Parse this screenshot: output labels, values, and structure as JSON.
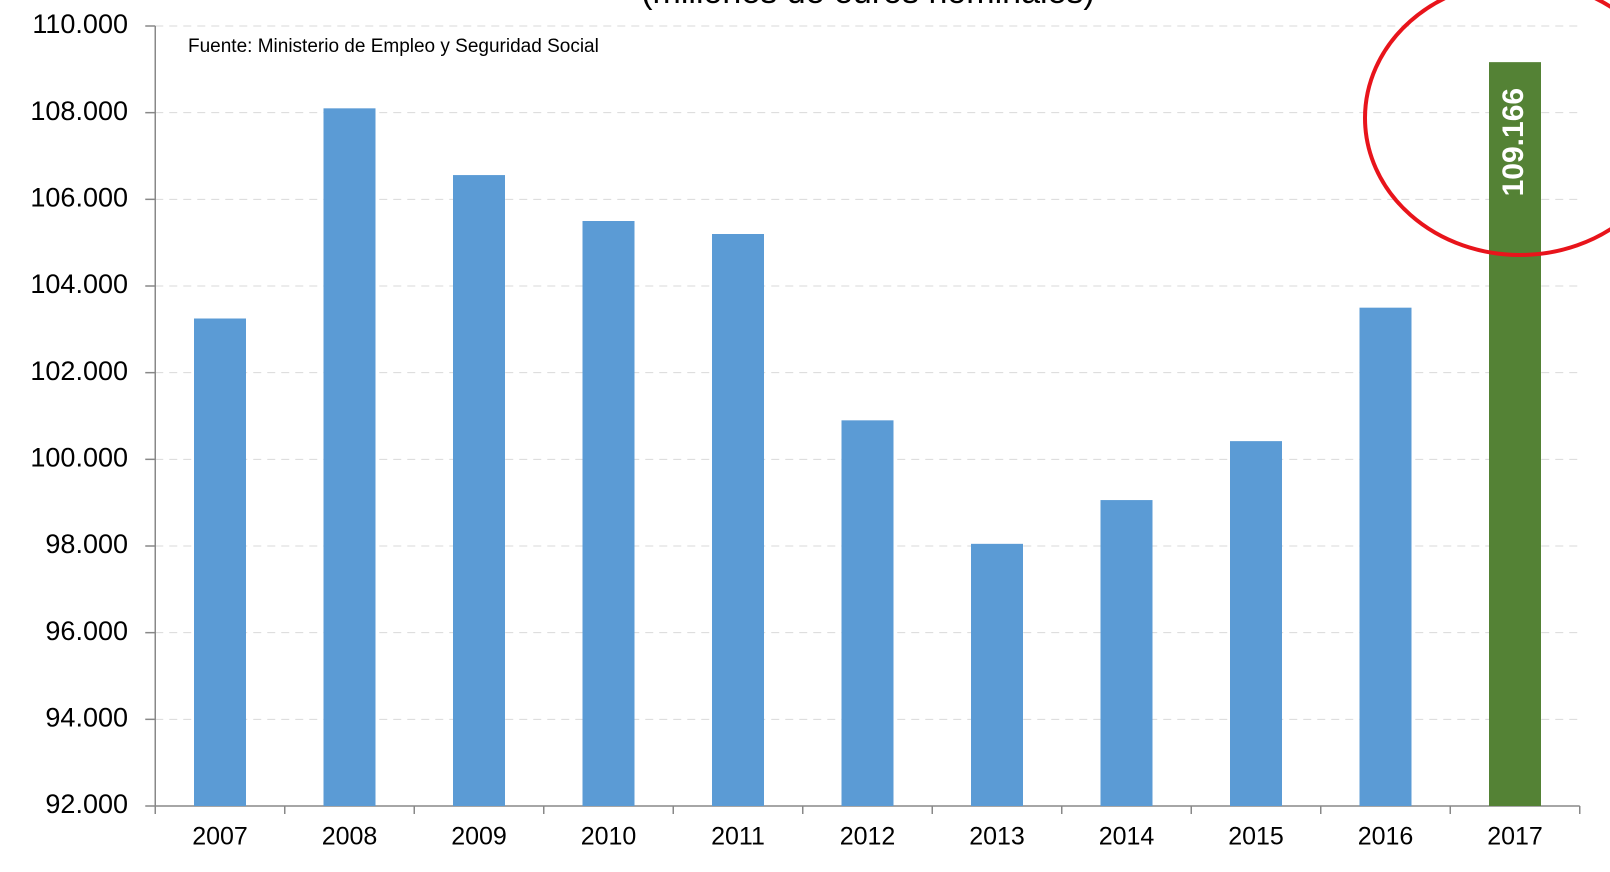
{
  "chart_data": {
    "type": "bar",
    "subtitle": "(millones de euros nominales)",
    "annotation": "Fuente: Ministerio de Empleo y Seguridad Social",
    "categories": [
      "2007",
      "2008",
      "2009",
      "2010",
      "2011",
      "2012",
      "2013",
      "2014",
      "2015",
      "2016",
      "2017"
    ],
    "values": [
      103250,
      108100,
      106560,
      105500,
      105200,
      100900,
      98050,
      99060,
      100420,
      103500,
      109166
    ],
    "value_labels": [
      null,
      null,
      null,
      null,
      null,
      null,
      null,
      null,
      null,
      null,
      "109.166"
    ],
    "colors": [
      "#5b9bd5",
      "#5b9bd5",
      "#5b9bd5",
      "#5b9bd5",
      "#5b9bd5",
      "#5b9bd5",
      "#5b9bd5",
      "#5b9bd5",
      "#5b9bd5",
      "#5b9bd5",
      "#548235"
    ],
    "ylim": [
      92000,
      110000
    ],
    "yticks": [
      {
        "value": 92000,
        "label": "92.000"
      },
      {
        "value": 94000,
        "label": "94.000"
      },
      {
        "value": 96000,
        "label": "96.000"
      },
      {
        "value": 98000,
        "label": "98.000"
      },
      {
        "value": 100000,
        "label": "100.000"
      },
      {
        "value": 102000,
        "label": "102.000"
      },
      {
        "value": 104000,
        "label": "104.000"
      },
      {
        "value": 106000,
        "label": "106.000"
      },
      {
        "value": 108000,
        "label": "108.000"
      },
      {
        "value": 110000,
        "label": "110.000"
      }
    ],
    "grid": true
  }
}
